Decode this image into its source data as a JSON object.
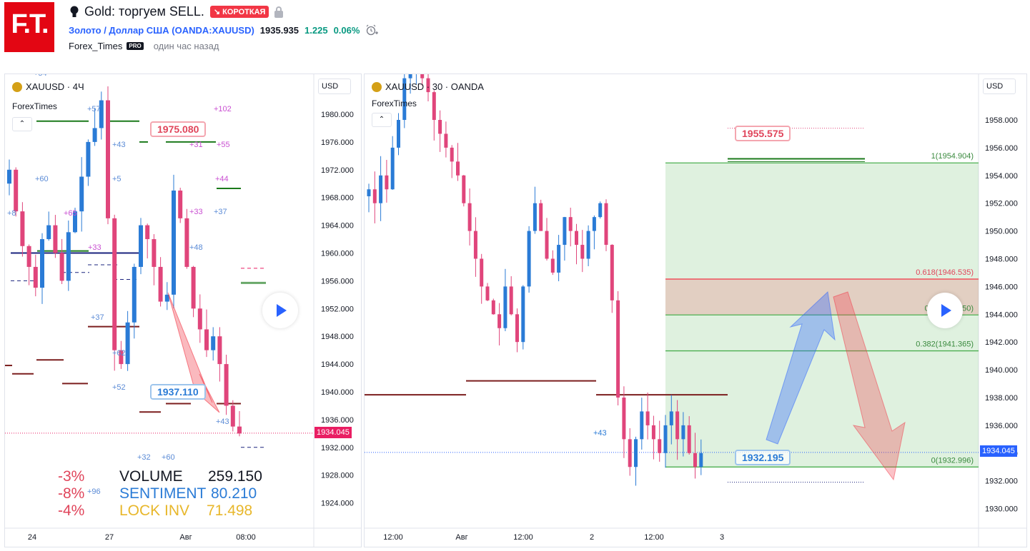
{
  "header": {
    "logo_text": "F.T.",
    "idea_title": "Gold: торгуем SELL.",
    "direction_badge": "↘ КОРОТКАЯ",
    "symbol_name": "Золото / Доллар США",
    "symbol_ticker": "(OANDA:XAUUSD)",
    "price": "1935.935",
    "change": "1.225",
    "change_pct": "0.06%",
    "author": "Forex_Times",
    "author_badge": "PRO",
    "published": "один час назад"
  },
  "left_chart": {
    "symbol": "XAUUSD · 4Ч",
    "watermark": "ForexTimes",
    "currency": "USD",
    "y_ticks": [
      "1980.000",
      "1976.000",
      "1972.000",
      "1968.000",
      "1964.000",
      "1960.000",
      "1956.000",
      "1952.000",
      "1948.000",
      "1944.000",
      "1940.000",
      "1936.000",
      "1932.000",
      "1928.000",
      "1924.000"
    ],
    "x_ticks": [
      "24",
      "27",
      "Авг",
      "08:00"
    ],
    "last_price": "1934.045",
    "callout_high": "1975.080",
    "callout_low": "1937.110",
    "labels": [
      "+54",
      "+57",
      "+102",
      "+60",
      "+31",
      "+55",
      "+44",
      "+33",
      "+37",
      "+65",
      "+8",
      "+33",
      "+37",
      "+62",
      "+52",
      "+43",
      "+32",
      "+60",
      "+96",
      "+43",
      "+5",
      "+48"
    ],
    "stats": [
      {
        "pct": "-3%",
        "name": "VOLUME",
        "value": "259.150",
        "color": "#131722"
      },
      {
        "pct": "-8%",
        "name": "SENTIMENT",
        "value": "80.210",
        "color": "#2a7bd6"
      },
      {
        "pct": "-4%",
        "name": "LOCK INV",
        "value": "71.498",
        "color": "#e8b72b"
      }
    ]
  },
  "right_chart": {
    "symbol": "XAUUSD · 30 · OANDA",
    "watermark": "ForexTimes",
    "currency": "USD",
    "y_ticks": [
      "1958.000",
      "1956.000",
      "1954.000",
      "1952.000",
      "1950.000",
      "1948.000",
      "1946.000",
      "1944.000",
      "1942.000",
      "1940.000",
      "1938.000",
      "1936.000",
      "1934.000",
      "1932.000",
      "1930.000"
    ],
    "x_ticks": [
      "12:00",
      "Авг",
      "12:00",
      "2",
      "12:00",
      "3"
    ],
    "last_price": "1934.045",
    "callout_high": "1955.575",
    "callout_low": "1932.195",
    "label_43": "+43",
    "fib": [
      {
        "label": "1(1954.904)",
        "price": 1954.904,
        "color": "#4caf50"
      },
      {
        "label": "0.618(1946.535)",
        "price": 1946.535,
        "color": "#f23645"
      },
      {
        "label": "0.5(1943.950)",
        "price": 1943.95,
        "color": "#4caf50"
      },
      {
        "label": "0.382(1941.365)",
        "price": 1941.365,
        "color": "#4caf50"
      },
      {
        "label": "0(1932.996)",
        "price": 1932.996,
        "color": "#4caf50"
      }
    ]
  }
}
